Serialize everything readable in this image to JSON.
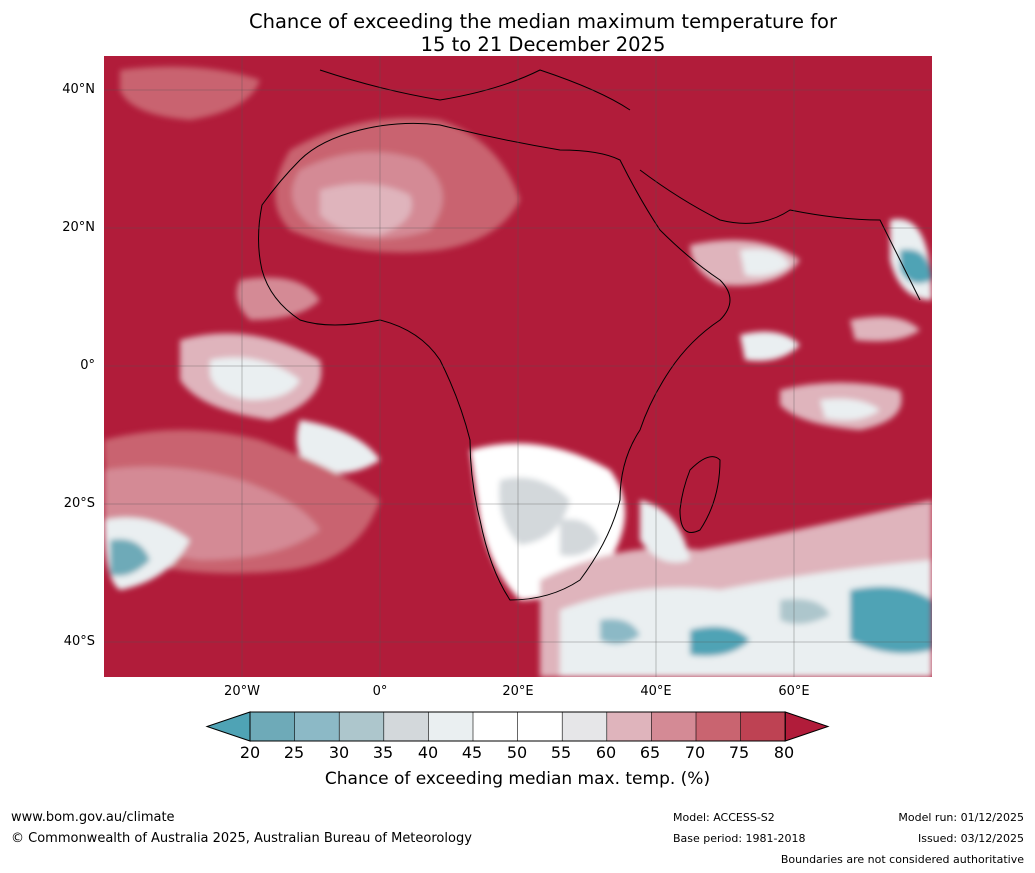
{
  "title": {
    "line1": "Chance of exceeding the median maximum temperature for",
    "line2": "15 to 21 December 2025"
  },
  "map": {
    "lat_labels": [
      "40°N",
      "20°N",
      "0°",
      "20°S",
      "40°S"
    ],
    "lon_labels": [
      "20°W",
      "0°",
      "20°E",
      "40°E",
      "60°E"
    ],
    "dominant_color": "#b11c3a",
    "ocean_color": "#b11c3a"
  },
  "colorbar": {
    "ticks": [
      "20",
      "25",
      "30",
      "35",
      "40",
      "45",
      "50",
      "55",
      "60",
      "65",
      "70",
      "75",
      "80"
    ],
    "colors": [
      "#4fa3b5",
      "#6eaab8",
      "#8cb9c6",
      "#adc6cc",
      "#d3d8db",
      "#eaeff1",
      "#ffffff",
      "#ffffff",
      "#e6e6e8",
      "#dfb4bc",
      "#d48a95",
      "#c96470",
      "#be4253",
      "#b11c3a"
    ],
    "label": "Chance of exceeding median max. temp. (%)"
  },
  "footer": {
    "website": "www.bom.gov.au/climate",
    "copyright": "© Commonwealth of Australia 2025, Australian Bureau of Meteorology",
    "model": "Model: ACCESS-S2",
    "base_period": "Base period: 1981-2018",
    "model_run": "Model run: 01/12/2025",
    "issued": "Issued: 03/12/2025",
    "boundaries": "Boundaries are not considered authoritative"
  }
}
